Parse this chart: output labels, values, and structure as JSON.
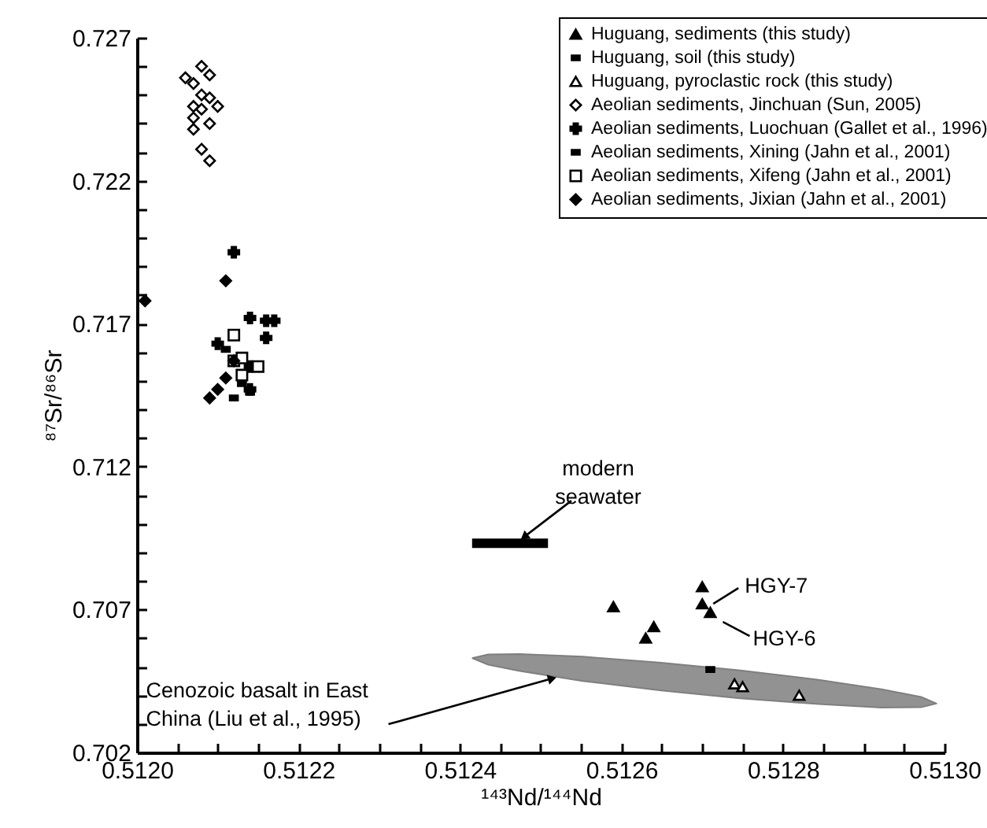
{
  "chart_data": {
    "type": "scatter",
    "xlabel": "¹⁴³Nd/¹⁴⁴Nd",
    "ylabel": "⁸⁷Sr/⁸⁶Sr",
    "xlim": [
      0.512,
      0.513
    ],
    "ylim": [
      0.702,
      0.727
    ],
    "xticks": [
      {
        "value": 0.512,
        "label": "0.5120"
      },
      {
        "value": 0.51205,
        "label": null
      },
      {
        "value": 0.5121,
        "label": null
      },
      {
        "value": 0.51215,
        "label": null
      },
      {
        "value": 0.5122,
        "label": "0.5122"
      },
      {
        "value": 0.51225,
        "label": null
      },
      {
        "value": 0.5123,
        "label": null
      },
      {
        "value": 0.51235,
        "label": null
      },
      {
        "value": 0.5124,
        "label": "0.5124"
      },
      {
        "value": 0.51245,
        "label": null
      },
      {
        "value": 0.5125,
        "label": null
      },
      {
        "value": 0.51255,
        "label": null
      },
      {
        "value": 0.5126,
        "label": "0.5126"
      },
      {
        "value": 0.51265,
        "label": null
      },
      {
        "value": 0.5127,
        "label": null
      },
      {
        "value": 0.51275,
        "label": null
      },
      {
        "value": 0.5128,
        "label": "0.5128"
      },
      {
        "value": 0.51285,
        "label": null
      },
      {
        "value": 0.5129,
        "label": null
      },
      {
        "value": 0.51295,
        "label": null
      },
      {
        "value": 0.513,
        "label": "0.5130"
      }
    ],
    "yticks": [
      0.702,
      {
        "value": 0.703,
        "label": null
      },
      {
        "value": 0.704,
        "label": null
      },
      {
        "value": 0.705,
        "label": null
      },
      {
        "value": 0.706,
        "label": null
      },
      0.707,
      {
        "value": 0.708,
        "label": null
      },
      {
        "value": 0.709,
        "label": null
      },
      {
        "value": 0.71,
        "label": null
      },
      {
        "value": 0.711,
        "label": null
      },
      0.712,
      {
        "value": 0.713,
        "label": null
      },
      {
        "value": 0.714,
        "label": null
      },
      {
        "value": 0.715,
        "label": null
      },
      {
        "value": 0.716,
        "label": null
      },
      0.717,
      {
        "value": 0.718,
        "label": null
      },
      {
        "value": 0.719,
        "label": null
      },
      {
        "value": 0.72,
        "label": null
      },
      {
        "value": 0.721,
        "label": null
      },
      0.722,
      {
        "value": 0.723,
        "label": null
      },
      {
        "value": 0.724,
        "label": null
      },
      {
        "value": 0.725,
        "label": null
      },
      {
        "value": 0.726,
        "label": null
      },
      0.727
    ],
    "legend": "top right",
    "grid": false,
    "series": [
      {
        "type": "area",
        "color": "#7f7f7f",
        "x": [
          0.512415,
          0.512435,
          0.512474,
          0.512552,
          0.512649,
          0.512747,
          0.512844,
          0.512922,
          0.512971,
          0.51299,
          0.512971,
          0.512922,
          0.512844,
          0.512747,
          0.512649,
          0.512552,
          0.512474,
          0.512435,
          0.512415
        ],
        "values": [
          0.7053,
          0.70543,
          0.70544,
          0.70535,
          0.70514,
          0.70487,
          0.70454,
          0.70421,
          0.70394,
          0.70371,
          0.70358,
          0.70357,
          0.70369,
          0.70389,
          0.70417,
          0.7045,
          0.70485,
          0.70507,
          0.7053
        ]
      },
      {
        "type": "line",
        "color": "#000000",
        "x": [
          0.512415,
          0.512509
        ],
        "values": [
          0.70932,
          0.70932
        ]
      },
      {
        "name": "Huguang, sediments (this study)",
        "marker": "triangle",
        "color": "#000000",
        "x": [
          0.51259,
          0.51264,
          0.51263,
          0.5127,
          0.5127,
          0.51271
        ],
        "values": [
          0.7071,
          0.7064,
          0.706,
          0.7078,
          0.7072,
          0.7069
        ]
      },
      {
        "name": "Huguang, soil (this study)",
        "marker": "square",
        "color": "#000000",
        "x": [
          0.51271
        ],
        "values": [
          0.7049
        ]
      },
      {
        "name": "Huguang, pyroclastic rock (this study)",
        "marker": "triangle-open",
        "color": "#000000",
        "x": [
          0.51274,
          0.51275,
          0.51282
        ],
        "values": [
          0.7044,
          0.7043,
          0.704
        ]
      },
      {
        "name": "Aeolian sediments, Jinchuan (Sun, 2005)",
        "marker": "diamond-open",
        "color": "#000000",
        "x": [
          0.51208,
          0.51206,
          0.51209,
          0.51207,
          0.51208,
          0.51209,
          0.51207,
          0.5121,
          0.51208,
          0.51207,
          0.51209,
          0.51207,
          0.51208,
          0.51209
        ],
        "values": [
          0.726,
          0.7256,
          0.7257,
          0.7254,
          0.725,
          0.7249,
          0.7246,
          0.7246,
          0.7245,
          0.7242,
          0.724,
          0.7238,
          0.7231,
          0.7227
        ]
      },
      {
        "name": "Aeolian sediments, Luochuan (Gallet et al., 1996)",
        "marker": "cross",
        "color": "#000000",
        "x": [
          0.51212,
          0.51214,
          0.51216,
          0.51217,
          0.51216,
          0.5121,
          0.51214,
          0.51214
        ],
        "values": [
          0.7195,
          0.7172,
          0.7171,
          0.7171,
          0.7165,
          0.7163,
          0.7155,
          0.7147
        ]
      },
      {
        "name": "Aeolian sediments, Xining (Jahn et al., 2001)",
        "marker": "square",
        "color": "#000000",
        "x": [
          0.51212,
          0.51214,
          0.51213,
          0.51211
        ],
        "values": [
          0.7144,
          0.7146,
          0.7149,
          0.7161
        ]
      },
      {
        "name": "Aeolian sediments, Xifeng (Jahn et al., 2001)",
        "marker": "square-open",
        "color": "#000000",
        "x": [
          0.51212,
          0.51212,
          0.51213,
          0.51215,
          0.51213
        ],
        "values": [
          0.7166,
          0.7157,
          0.7158,
          0.7155,
          0.7152
        ]
      },
      {
        "name": "Aeolian sediments, Jixian (Jahn et al., 2001)",
        "marker": "diamond",
        "color": "#000000",
        "x": [
          0.51201,
          0.51211,
          0.51209,
          0.5121,
          0.51211,
          0.51212
        ],
        "values": [
          0.7178,
          0.7185,
          0.7144,
          0.7147,
          0.7151,
          0.7157
        ]
      }
    ],
    "annotations": [
      {
        "text": "HGY-7",
        "x": 0.5127,
        "y": 0.7072
      },
      {
        "text": "HGY-6",
        "x": 0.51271,
        "y": 0.7069
      },
      {
        "text": "modern\nseawater",
        "x": 0.51246,
        "y": 0.70932
      },
      {
        "text": "Cenozoic basalt in East\nChina (Liu et al., 1995)",
        "x": 0.512522,
        "y": 0.70464
      }
    ]
  }
}
